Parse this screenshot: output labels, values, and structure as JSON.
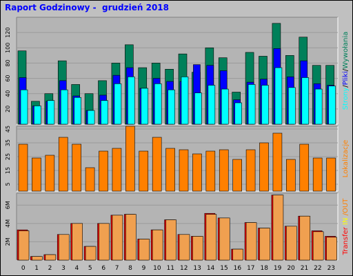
{
  "title": "Raport Godzinowy -  grudzień 2018",
  "colors": {
    "background": "#c0c0c0",
    "plot_bg": "#b4b4b4",
    "hits": "#00805a",
    "files": "#0000ff",
    "pages": "#00ffff",
    "visits": "#ff8000",
    "transfer": "#ff0000",
    "transfer_fill": "#f0a050",
    "grid": "#ffffff"
  },
  "chart_data": [
    {
      "type": "bar",
      "categories": [
        "0",
        "1",
        "2",
        "3",
        "4",
        "5",
        "6",
        "7",
        "8",
        "9",
        "10",
        "11",
        "12",
        "13",
        "14",
        "15",
        "16",
        "17",
        "18",
        "19",
        "20",
        "21",
        "22",
        "23"
      ],
      "ylim": [
        0,
        140
      ],
      "yticks": [
        "20",
        "40",
        "60",
        "80",
        "100",
        "120"
      ],
      "ytick_values": [
        20,
        40,
        60,
        80,
        100,
        120
      ],
      "grid": true,
      "legend_parts": [
        "Strony",
        "/",
        "Pliki",
        "/",
        "Wywołania"
      ],
      "legend_colors": [
        "#00ffff",
        "#000000",
        "#0000ff",
        "#000000",
        "#00805a"
      ],
      "series": [
        {
          "name": "Wywołania",
          "color": "#00805a",
          "values": [
            96,
            30,
            40,
            83,
            52,
            40,
            57,
            80,
            104,
            74,
            80,
            72,
            92,
            68,
            100,
            87,
            42,
            94,
            89,
            132,
            90,
            114,
            77,
            77
          ]
        },
        {
          "name": "Pliki",
          "color": "#0000ff",
          "values": [
            61,
            24,
            30,
            57,
            37,
            18,
            38,
            64,
            74,
            47,
            60,
            56,
            56,
            78,
            77,
            70,
            32,
            55,
            59,
            99,
            62,
            83,
            53,
            51
          ]
        },
        {
          "name": "Strony",
          "color": "#00ffff",
          "values": [
            45,
            24,
            31,
            45,
            35,
            18,
            31,
            53,
            62,
            47,
            53,
            45,
            62,
            41,
            51,
            46,
            28,
            52,
            51,
            74,
            48,
            61,
            46,
            50
          ]
        }
      ]
    },
    {
      "type": "bar",
      "categories": [
        "0",
        "1",
        "2",
        "3",
        "4",
        "5",
        "6",
        "7",
        "8",
        "9",
        "10",
        "11",
        "12",
        "13",
        "14",
        "15",
        "16",
        "17",
        "18",
        "19",
        "20",
        "21",
        "22",
        "23"
      ],
      "ylim": [
        0,
        47
      ],
      "yticks": [
        "5",
        "15",
        "25",
        "35",
        "45"
      ],
      "ytick_values": [
        5,
        15,
        25,
        35,
        45
      ],
      "grid": true,
      "legend_parts": [
        "Lokalizacje"
      ],
      "legend_colors": [
        "#ff8000"
      ],
      "series": [
        {
          "name": "Lokalizacje",
          "color": "#ff8000",
          "values": [
            34,
            24,
            26,
            39,
            34,
            17,
            29,
            31,
            47,
            29,
            39,
            31,
            30,
            27,
            29,
            30,
            23,
            30,
            35,
            42,
            23,
            34,
            24,
            24
          ]
        }
      ]
    },
    {
      "type": "bar",
      "categories": [
        "0",
        "1",
        "2",
        "3",
        "4",
        "5",
        "6",
        "7",
        "8",
        "9",
        "10",
        "11",
        "12",
        "13",
        "14",
        "15",
        "16",
        "17",
        "18",
        "19",
        "20",
        "21",
        "22",
        "23"
      ],
      "ylim": [
        0,
        7.3
      ],
      "yticks": [
        "2M",
        "4M",
        "6M"
      ],
      "ytick_values": [
        2,
        4,
        6
      ],
      "grid": true,
      "legend_parts": [
        "Transfer",
        " IN ",
        "/",
        "OUT"
      ],
      "legend_colors": [
        "#ff0000",
        "#ffff00",
        "#ff8000",
        "#ff8000"
      ],
      "series": [
        {
          "name": "Transfer",
          "color": "#ff0000",
          "values": [
            3.3,
            0.4,
            0.6,
            2.8,
            4.0,
            1.5,
            4.0,
            4.9,
            5.0,
            2.3,
            3.3,
            4.4,
            2.8,
            2.6,
            5.1,
            4.6,
            1.2,
            4.1,
            3.5,
            7.1,
            3.7,
            4.8,
            3.2,
            2.6
          ]
        },
        {
          "name": "OUT",
          "color": "#f0a050",
          "values": [
            3.2,
            0.4,
            0.6,
            2.8,
            4.0,
            1.5,
            4.0,
            4.9,
            5.0,
            2.3,
            3.3,
            4.4,
            2.8,
            2.6,
            5.0,
            4.6,
            1.2,
            4.1,
            3.5,
            7.1,
            3.7,
            4.8,
            3.1,
            2.5
          ]
        }
      ]
    }
  ]
}
